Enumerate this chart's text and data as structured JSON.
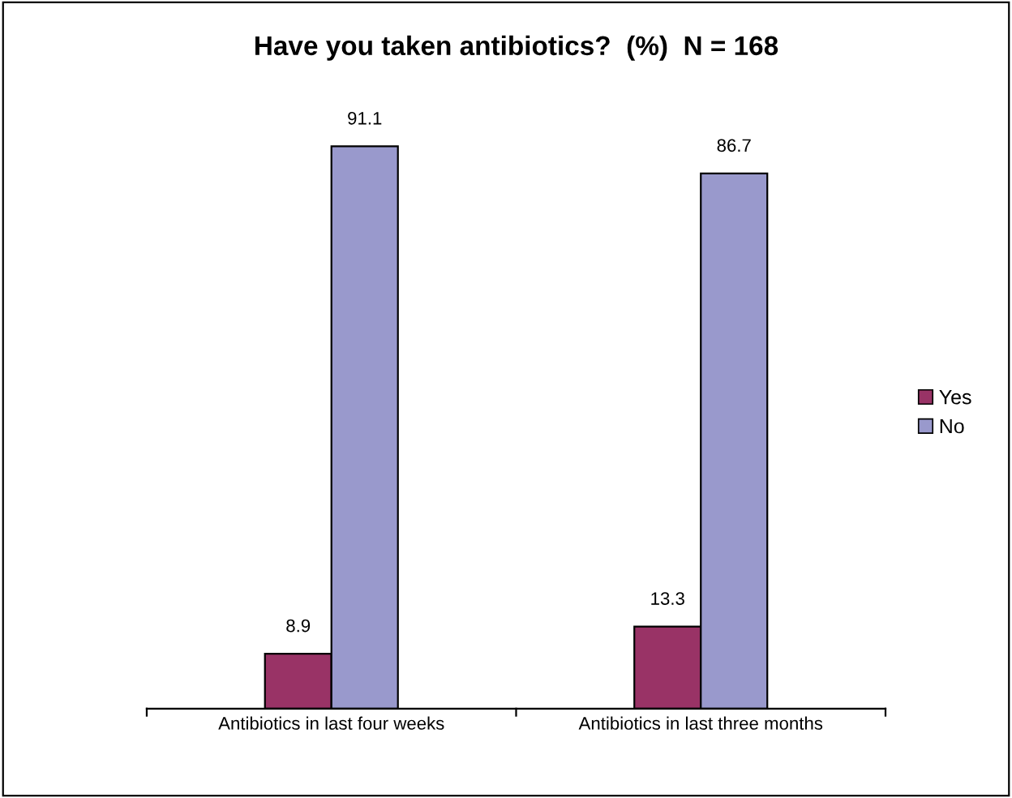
{
  "chart_data": {
    "type": "bar",
    "title": "Have you taken antibiotics?  (%)  N = 168",
    "categories": [
      "Antibiotics in last four weeks",
      "Antibiotics in last three months"
    ],
    "series": [
      {
        "name": "Yes",
        "color": "#993366",
        "values": [
          8.9,
          13.3
        ]
      },
      {
        "name": "No",
        "color": "#9999cc",
        "values": [
          91.1,
          86.7
        ]
      }
    ],
    "data_labels": true,
    "legend": "right",
    "grid": false
  }
}
